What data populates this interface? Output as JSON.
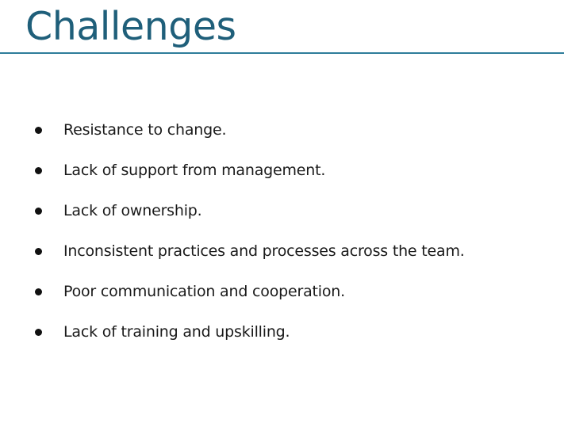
{
  "slide": {
    "title": "Challenges",
    "title_color": "#1f5f7a",
    "rule_color": "#2e7d9a",
    "bullets": [
      "Resistance to change.",
      "Lack of support from management.",
      "Lack of ownership.",
      "Inconsistent practices and processes across the team.",
      "Poor communication and cooperation.",
      "Lack of training and upskilling."
    ]
  }
}
